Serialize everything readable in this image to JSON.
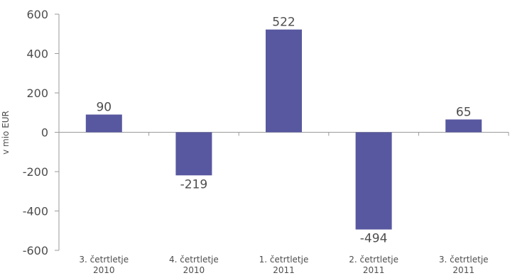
{
  "chart_data": {
    "type": "bar",
    "categories": [
      [
        "3. četrtletje",
        "2010"
      ],
      [
        "4. četrtletje",
        "2010"
      ],
      [
        "1. četrtletje",
        "2011"
      ],
      [
        "2. četrtletje",
        "2011"
      ],
      [
        "3. četrtletje",
        "2011"
      ]
    ],
    "values": [
      90,
      -219,
      522,
      -494,
      65
    ],
    "data_labels": [
      "90",
      "-219",
      "522",
      "-494",
      "65"
    ],
    "title": "",
    "xlabel": "",
    "ylabel": "v mio EUR",
    "ylim": [
      -600,
      600
    ],
    "yticks": [
      600,
      400,
      200,
      0,
      -200,
      -400,
      -600
    ],
    "grid": false,
    "legend": "none",
    "bar_color": "#5858a0",
    "axis_color": "#9a9a9a",
    "text_color": "#4d4d4d"
  }
}
